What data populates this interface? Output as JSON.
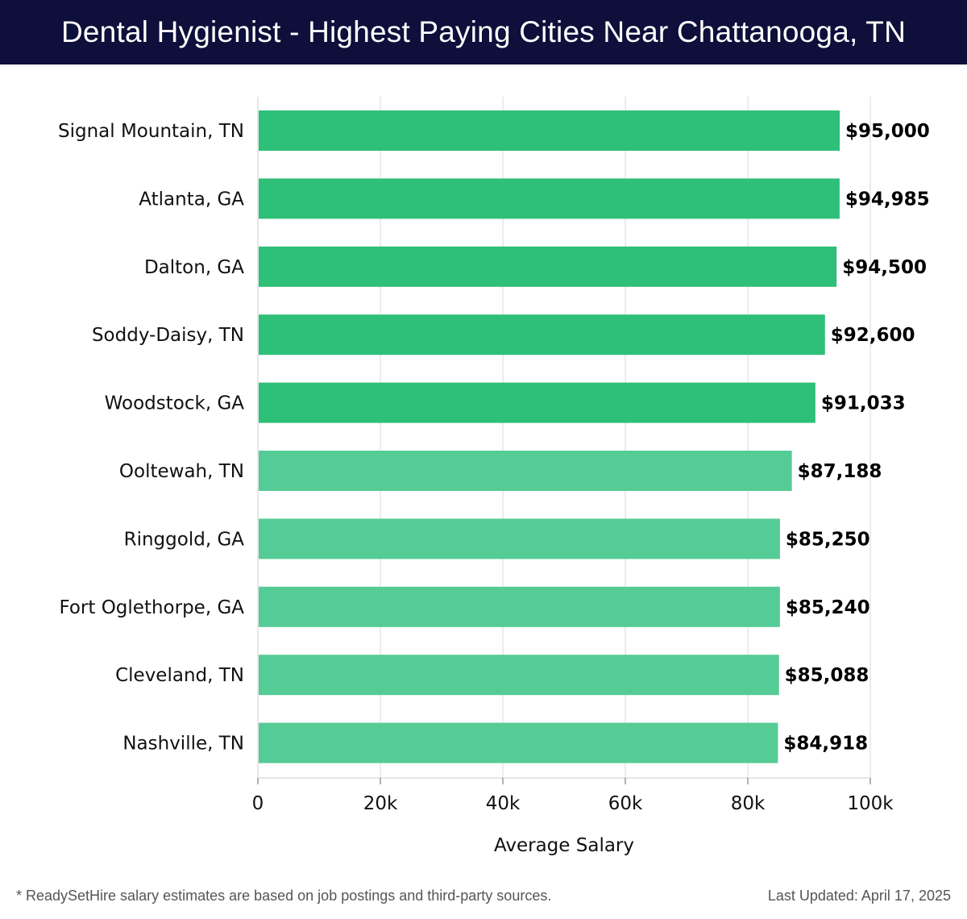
{
  "header": {
    "title": "Dental Hygienist - Highest Paying Cities Near Chattanooga, TN"
  },
  "chart_data": {
    "type": "bar",
    "orientation": "horizontal",
    "categories": [
      "Signal Mountain, TN",
      "Atlanta, GA",
      "Dalton, GA",
      "Soddy-Daisy, TN",
      "Woodstock, GA",
      "Ooltewah, TN",
      "Ringgold, GA",
      "Fort Oglethorpe, GA",
      "Cleveland, TN",
      "Nashville, TN"
    ],
    "values": [
      95000,
      94985,
      94500,
      92600,
      91033,
      87188,
      85250,
      85240,
      85088,
      84918
    ],
    "value_labels": [
      "$95,000",
      "$94,985",
      "$94,500",
      "$92,600",
      "$91,033",
      "$87,188",
      "$85,250",
      "$85,240",
      "$85,088",
      "$84,918"
    ],
    "xlabel": "Average Salary",
    "xlim": [
      0,
      100000
    ],
    "xticks": [
      0,
      20000,
      40000,
      60000,
      80000,
      100000
    ],
    "xtick_labels": [
      "0",
      "20k",
      "40k",
      "60k",
      "80k",
      "100k"
    ],
    "grid": true,
    "colors": {
      "dark_green": "#2ebf78",
      "light_green": "#55cb95"
    }
  },
  "footer": {
    "note": "* ReadySetHire salary estimates are based on job postings and third-party sources.",
    "updated": "Last Updated: April 17, 2025"
  }
}
